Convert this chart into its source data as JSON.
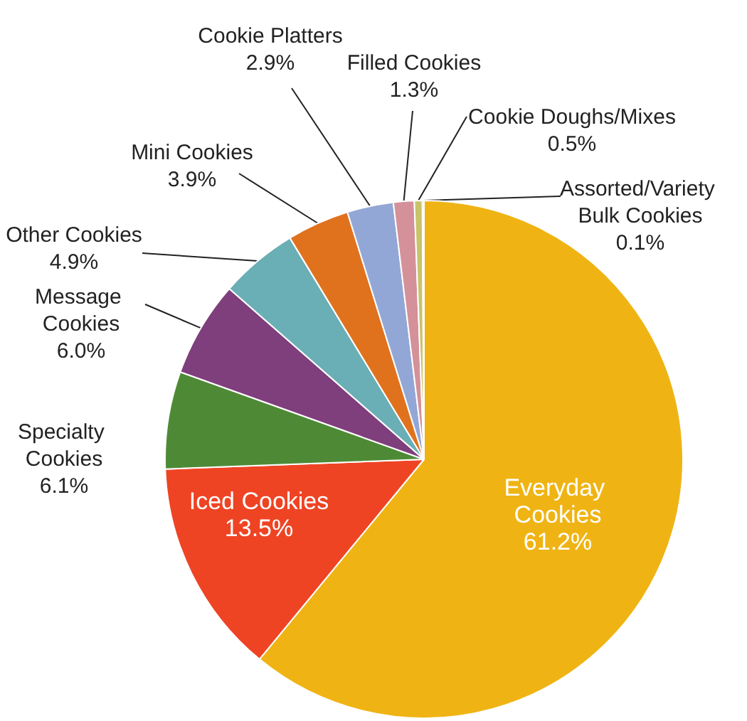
{
  "chart_data": {
    "type": "pie",
    "categories": [
      "Everyday Cookies",
      "Iced Cookies",
      "Specialty Cookies",
      "Message Cookies",
      "Other Cookies",
      "Mini Cookies",
      "Cookie Platters",
      "Filled Cookies",
      "Cookie Doughs/Mixes",
      "Assorted/Variety Bulk Cookies"
    ],
    "values": [
      61.2,
      13.5,
      6.1,
      6.0,
      4.9,
      3.9,
      2.9,
      1.3,
      0.5,
      0.1
    ],
    "value_labels": [
      "61.2%",
      "13.5%",
      "6.1%",
      "6.0%",
      "4.9%",
      "3.9%",
      "2.9%",
      "1.3%",
      "0.5%",
      "0.1%"
    ],
    "colors": [
      "#efb414",
      "#ee4424",
      "#4e8a36",
      "#7f3e7c",
      "#6aaeb6",
      "#e0721e",
      "#93a7d6",
      "#d4919a",
      "#c9c36a",
      "#8dc3c4"
    ]
  }
}
